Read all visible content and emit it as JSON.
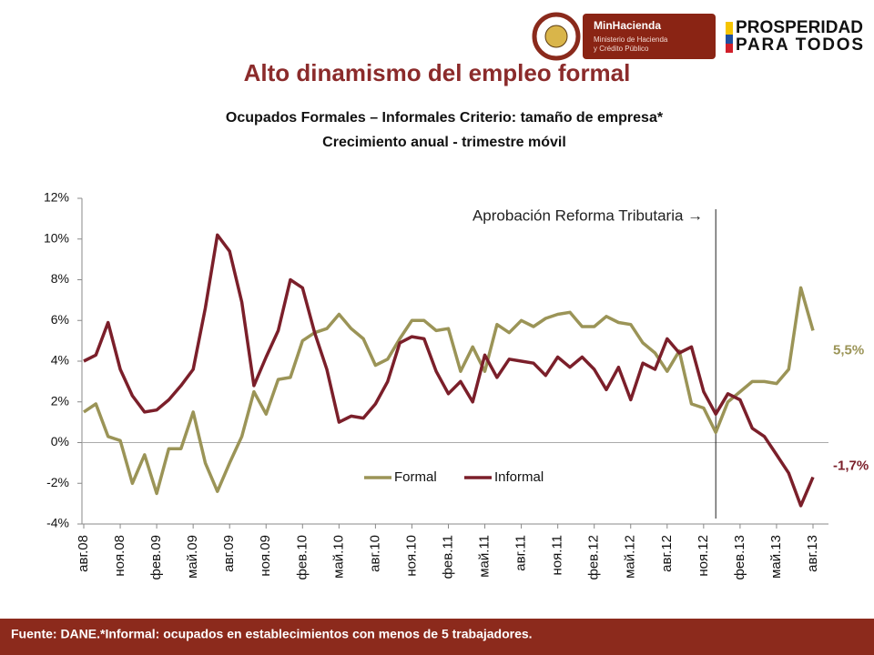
{
  "header": {
    "ministry": "MinHacienda",
    "ministry_sub": [
      "Ministerio de Hacienda",
      "y Crédito Público"
    ],
    "brand": [
      "PROSPERIDAD",
      "PARA TODOS"
    ]
  },
  "footer": "Fuente: DANE.*Informal: ocupados en establecimientos con menos de 5 trabajadores.",
  "chart_data": {
    "type": "line",
    "title": "Alto dinamismo del empleo formal",
    "subtitle": [
      "Ocupados Formales – Informales  Criterio: tamaño de empresa*",
      "Crecimiento anual - trimestre móvil"
    ],
    "annotation": "Aprobación Reforma Tributaria →",
    "categories": [
      "авг.08",
      null,
      null,
      "ноя.08",
      null,
      null,
      "фев.09",
      null,
      null,
      "май.09",
      null,
      null,
      "авг.09",
      null,
      null,
      "ноя.09",
      null,
      null,
      "фев.10",
      null,
      null,
      "май.10",
      null,
      null,
      "авг.10",
      null,
      null,
      "ноя.10",
      null,
      null,
      "фев.11",
      null,
      null,
      "май.11",
      null,
      null,
      "авг.11",
      null,
      null,
      "ноя.11",
      null,
      null,
      "фев.12",
      null,
      null,
      "май.12",
      null,
      null,
      "авг.12",
      null,
      null,
      "ноя.12",
      null,
      null,
      "фев.13",
      null,
      null,
      "май.13",
      null,
      null,
      "авг.13"
    ],
    "series": [
      {
        "name": "Formal",
        "color": "#9b9457",
        "values": [
          1.5,
          1.9,
          0.3,
          0.1,
          -2.0,
          -0.6,
          -2.5,
          -0.3,
          -0.3,
          1.5,
          -1.0,
          -2.4,
          -1.0,
          0.3,
          2.5,
          1.4,
          3.1,
          3.2,
          5.0,
          5.4,
          5.6,
          6.3,
          5.6,
          5.1,
          3.8,
          4.1,
          5.1,
          6.0,
          6.0,
          5.5,
          5.6,
          3.5,
          4.7,
          3.5,
          5.8,
          5.4,
          6.0,
          5.7,
          6.1,
          6.3,
          6.4,
          5.7,
          5.7,
          6.2,
          5.9,
          5.8,
          4.9,
          4.4,
          3.5,
          4.5,
          1.9,
          1.7,
          0.5,
          2.0,
          2.5,
          3.0,
          3.0,
          2.9,
          3.6,
          7.6,
          5.5
        ],
        "value_labels": [
          null,
          null,
          null,
          null,
          null,
          null,
          null,
          null,
          null,
          null,
          null,
          null,
          null,
          null,
          null,
          null,
          null,
          null,
          null,
          null,
          null,
          null,
          null,
          null,
          null,
          null,
          null,
          null,
          null,
          null,
          null,
          null,
          null,
          null,
          null,
          null,
          null,
          null,
          null,
          null,
          null,
          null,
          null,
          null,
          null,
          null,
          null,
          null,
          null,
          null,
          null,
          null,
          null,
          null,
          null,
          null,
          null,
          null,
          null,
          null,
          "5,5%"
        ]
      },
      {
        "name": "Informal",
        "color": "#7b1f2a",
        "values": [
          4.0,
          4.3,
          5.9,
          3.6,
          2.3,
          1.5,
          1.6,
          2.1,
          2.8,
          3.6,
          6.6,
          10.2,
          9.4,
          6.9,
          2.8,
          4.2,
          5.5,
          8.0,
          7.6,
          5.4,
          3.6,
          1.0,
          1.3,
          1.2,
          1.9,
          3.0,
          4.9,
          5.2,
          5.1,
          3.5,
          2.4,
          3.0,
          2.0,
          4.3,
          3.2,
          4.1,
          4.0,
          3.9,
          3.3,
          4.2,
          3.7,
          4.2,
          3.6,
          2.6,
          3.7,
          2.1,
          3.9,
          3.6,
          5.1,
          4.4,
          4.7,
          2.5,
          1.4,
          2.4,
          2.1,
          0.7,
          0.3,
          -0.6,
          -1.5,
          -3.1,
          -1.7
        ],
        "value_labels": [
          null,
          null,
          null,
          null,
          null,
          null,
          null,
          null,
          null,
          null,
          null,
          null,
          null,
          null,
          null,
          null,
          null,
          null,
          null,
          null,
          null,
          null,
          null,
          null,
          null,
          null,
          null,
          null,
          null,
          null,
          null,
          null,
          null,
          null,
          null,
          null,
          null,
          null,
          null,
          null,
          null,
          null,
          null,
          null,
          null,
          null,
          null,
          null,
          null,
          null,
          null,
          null,
          null,
          null,
          null,
          null,
          null,
          null,
          null,
          null,
          "-1,7%"
        ]
      }
    ],
    "ylim": [
      -4,
      12
    ],
    "yticks": [
      {
        "value": -4,
        "label": "-4%"
      },
      {
        "value": -2,
        "label": "-2%"
      },
      {
        "value": 0,
        "label": "0%"
      },
      {
        "value": 2,
        "label": "2%"
      },
      {
        "value": 4,
        "label": "4%"
      },
      {
        "value": 6,
        "label": "6%"
      },
      {
        "value": 8,
        "label": "8%"
      },
      {
        "value": 10,
        "label": "10%"
      },
      {
        "value": 12,
        "label": "12%"
      }
    ],
    "grid": false,
    "legend": "bottom"
  }
}
